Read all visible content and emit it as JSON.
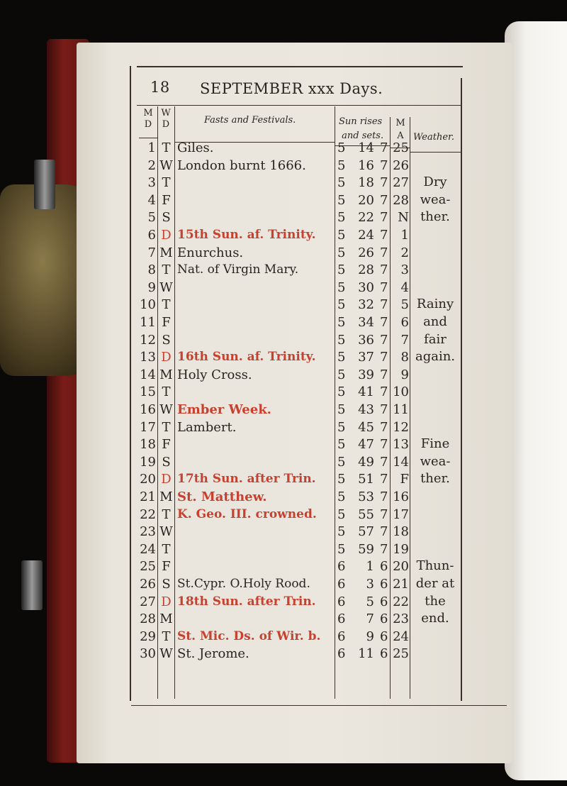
{
  "page_number": "18",
  "title": "SEPTEMBER xxx Days.",
  "headers": {
    "md": [
      "M",
      "D"
    ],
    "wd": [
      "W",
      "D"
    ],
    "fasts": "Fasts and Festivals.",
    "sun": [
      "Sun rises",
      "and sets."
    ],
    "ma": [
      "M",
      "A"
    ],
    "weather": "Weather."
  },
  "colors": {
    "red_ink": "#c8402e",
    "black_ink": "#2a2420",
    "paper": "#ebe7df"
  },
  "rows": [
    {
      "md": "1",
      "wd": "T",
      "fest": "Giles.",
      "red": false,
      "rh": "5",
      "rm": "14",
      "sh": "7",
      "ma": "25"
    },
    {
      "md": "2",
      "wd": "W",
      "fest": "London burnt 1666.",
      "red": false,
      "rh": "5",
      "rm": "16",
      "sh": "7",
      "ma": "26"
    },
    {
      "md": "3",
      "wd": "T",
      "fest": "",
      "red": false,
      "rh": "5",
      "rm": "18",
      "sh": "7",
      "ma": "27"
    },
    {
      "md": "4",
      "wd": "F",
      "fest": "",
      "red": false,
      "rh": "5",
      "rm": "20",
      "sh": "7",
      "ma": "28"
    },
    {
      "md": "5",
      "wd": "S",
      "fest": "",
      "red": false,
      "rh": "5",
      "rm": "22",
      "sh": "7",
      "ma": "N"
    },
    {
      "md": "6",
      "wd": "D",
      "fest": "15th Sun. af. Trinity.",
      "red": true,
      "rh": "5",
      "rm": "24",
      "sh": "7",
      "ma": "1"
    },
    {
      "md": "7",
      "wd": "M",
      "fest": "Enurchus.",
      "red": false,
      "rh": "5",
      "rm": "26",
      "sh": "7",
      "ma": "2"
    },
    {
      "md": "8",
      "wd": "T",
      "fest": "Nat. of Virgin Mary.",
      "red": false,
      "rh": "5",
      "rm": "28",
      "sh": "7",
      "ma": "3"
    },
    {
      "md": "9",
      "wd": "W",
      "fest": "",
      "red": false,
      "rh": "5",
      "rm": "30",
      "sh": "7",
      "ma": "4"
    },
    {
      "md": "10",
      "wd": "T",
      "fest": "",
      "red": false,
      "rh": "5",
      "rm": "32",
      "sh": "7",
      "ma": "5"
    },
    {
      "md": "11",
      "wd": "F",
      "fest": "",
      "red": false,
      "rh": "5",
      "rm": "34",
      "sh": "7",
      "ma": "6"
    },
    {
      "md": "12",
      "wd": "S",
      "fest": "",
      "red": false,
      "rh": "5",
      "rm": "36",
      "sh": "7",
      "ma": "7"
    },
    {
      "md": "13",
      "wd": "D",
      "fest": "16th Sun. af. Trinity.",
      "red": true,
      "rh": "5",
      "rm": "37",
      "sh": "7",
      "ma": "8"
    },
    {
      "md": "14",
      "wd": "M",
      "fest": "Holy Cross.",
      "red": false,
      "rh": "5",
      "rm": "39",
      "sh": "7",
      "ma": "9"
    },
    {
      "md": "15",
      "wd": "T",
      "fest": "",
      "red": false,
      "rh": "5",
      "rm": "41",
      "sh": "7",
      "ma": "10"
    },
    {
      "md": "16",
      "wd": "W",
      "fest": "Ember Week.",
      "red": true,
      "rh": "5",
      "rm": "43",
      "sh": "7",
      "ma": "11"
    },
    {
      "md": "17",
      "wd": "T",
      "fest": "Lambert.",
      "red": false,
      "rh": "5",
      "rm": "45",
      "sh": "7",
      "ma": "12"
    },
    {
      "md": "18",
      "wd": "F",
      "fest": "",
      "red": false,
      "rh": "5",
      "rm": "47",
      "sh": "7",
      "ma": "13"
    },
    {
      "md": "19",
      "wd": "S",
      "fest": "",
      "red": false,
      "rh": "5",
      "rm": "49",
      "sh": "7",
      "ma": "14"
    },
    {
      "md": "20",
      "wd": "D",
      "fest": "17th Sun. after Trin.",
      "red": true,
      "rh": "5",
      "rm": "51",
      "sh": "7",
      "ma": "F"
    },
    {
      "md": "21",
      "wd": "M",
      "fest": "St. Matthew.",
      "red": true,
      "rh": "5",
      "rm": "53",
      "sh": "7",
      "ma": "16"
    },
    {
      "md": "22",
      "wd": "T",
      "fest": "K. Geo. III. crowned.",
      "red": true,
      "rh": "5",
      "rm": "55",
      "sh": "7",
      "ma": "17"
    },
    {
      "md": "23",
      "wd": "W",
      "fest": "",
      "red": false,
      "rh": "5",
      "rm": "57",
      "sh": "7",
      "ma": "18"
    },
    {
      "md": "24",
      "wd": "T",
      "fest": "",
      "red": false,
      "rh": "5",
      "rm": "59",
      "sh": "7",
      "ma": "19"
    },
    {
      "md": "25",
      "wd": "F",
      "fest": "",
      "red": false,
      "rh": "6",
      "rm": "1",
      "sh": "6",
      "ma": "20"
    },
    {
      "md": "26",
      "wd": "S",
      "fest": "St.Cypr. O.Holy Rood.",
      "red": false,
      "rh": "6",
      "rm": "3",
      "sh": "6",
      "ma": "21"
    },
    {
      "md": "27",
      "wd": "D",
      "fest": "18th Sun. after Trin.",
      "red": true,
      "rh": "6",
      "rm": "5",
      "sh": "6",
      "ma": "22"
    },
    {
      "md": "28",
      "wd": "M",
      "fest": "",
      "red": false,
      "rh": "6",
      "rm": "7",
      "sh": "6",
      "ma": "23"
    },
    {
      "md": "29",
      "wd": "T",
      "fest": "St. Mic. Ds. of Wir. b.",
      "red": true,
      "rh": "6",
      "rm": "9",
      "sh": "6",
      "ma": "24"
    },
    {
      "md": "30",
      "wd": "W",
      "fest": "St. Jerome.",
      "red": false,
      "rh": "6",
      "rm": "11",
      "sh": "6",
      "ma": "25"
    }
  ],
  "weather": [
    {
      "start_row": 3,
      "lines": [
        "Dry",
        "wea-",
        "ther."
      ]
    },
    {
      "start_row": 10,
      "lines": [
        "Rainy",
        "and",
        "fair",
        "again."
      ]
    },
    {
      "start_row": 18,
      "lines": [
        "Fine",
        "wea-",
        "ther."
      ]
    },
    {
      "start_row": 25,
      "lines": [
        "Thun-",
        "der at",
        "the",
        "end."
      ]
    }
  ]
}
